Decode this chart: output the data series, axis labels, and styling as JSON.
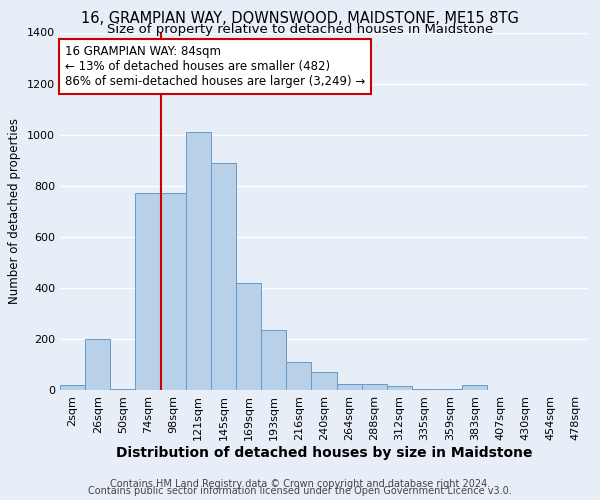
{
  "title": "16, GRAMPIAN WAY, DOWNSWOOD, MAIDSTONE, ME15 8TG",
  "subtitle": "Size of property relative to detached houses in Maidstone",
  "xlabel": "Distribution of detached houses by size in Maidstone",
  "ylabel": "Number of detached properties",
  "categories": [
    "2sqm",
    "26sqm",
    "50sqm",
    "74sqm",
    "98sqm",
    "121sqm",
    "145sqm",
    "169sqm",
    "193sqm",
    "216sqm",
    "240sqm",
    "264sqm",
    "288sqm",
    "312sqm",
    "335sqm",
    "359sqm",
    "383sqm",
    "407sqm",
    "430sqm",
    "454sqm",
    "478sqm"
  ],
  "values": [
    20,
    200,
    2,
    770,
    770,
    1010,
    890,
    420,
    235,
    110,
    70,
    25,
    25,
    15,
    5,
    2,
    20,
    0,
    0,
    0,
    0
  ],
  "bar_color": "#b8d0e8",
  "bar_edge_color": "#6699cc",
  "property_line_x": 4.0,
  "property_label": "16 GRAMPIAN WAY: 84sqm",
  "annotation_line1": "← 13% of detached houses are smaller (482)",
  "annotation_line2": "86% of semi-detached houses are larger (3,249) →",
  "annotation_box_color": "#ffffff",
  "annotation_box_edge_color": "#cc0000",
  "vline_color": "#cc0000",
  "ylim": [
    0,
    1400
  ],
  "yticks": [
    0,
    200,
    400,
    600,
    800,
    1000,
    1200,
    1400
  ],
  "background_color": "#e8eef8",
  "grid_color": "#ffffff",
  "footer1": "Contains HM Land Registry data © Crown copyright and database right 2024.",
  "footer2": "Contains public sector information licensed under the Open Government Licence v3.0.",
  "title_fontsize": 10.5,
  "subtitle_fontsize": 9.5,
  "xlabel_fontsize": 10,
  "ylabel_fontsize": 8.5,
  "tick_fontsize": 8,
  "footer_fontsize": 7,
  "annot_fontsize": 8.5
}
